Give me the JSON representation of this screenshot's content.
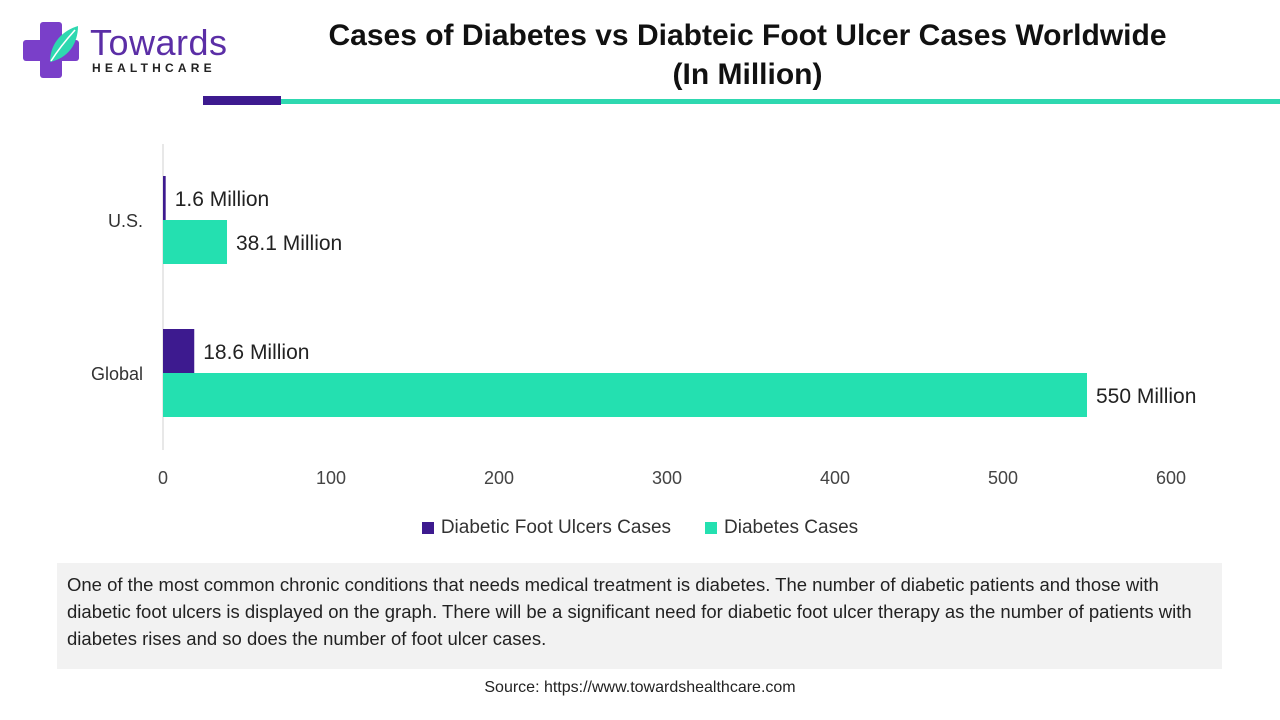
{
  "brand": {
    "name": "Towards",
    "sub": "HEALTHCARE",
    "colors": {
      "purple": "#5b2ea6",
      "teal": "#2ed8b0",
      "dark_purple": "#3d1a8f"
    }
  },
  "description": "One of the most common chronic conditions that needs medical treatment is diabetes. The number of diabetic patients and those with diabetic foot ulcers is displayed on the graph. There will be a significant need for diabetic foot ulcer therapy as the number of patients with diabetes rises and so does the number of foot ulcer cases.",
  "source": "Source: https://www.towardshealthcare.com",
  "chart_data": {
    "type": "bar",
    "orientation": "horizontal",
    "title": "Cases of Diabetes vs Diabteic Foot Ulcer Cases Worldwide (In Million)",
    "title_lines": [
      "Cases of Diabetes vs Diabteic Foot Ulcer Cases Worldwide",
      "(In Million)"
    ],
    "categories": [
      "U.S.",
      "Global"
    ],
    "series": [
      {
        "name": "Diabetic Foot Ulcers Cases",
        "color": "#3d1a8f",
        "values": [
          1.6,
          18.6
        ],
        "labels": [
          "1.6 Million",
          "18.6 Million"
        ]
      },
      {
        "name": "Diabetes Cases",
        "color": "#24e0b0",
        "values": [
          38.1,
          550
        ],
        "labels": [
          "38.1 Million",
          "550 Million"
        ]
      }
    ],
    "xlim": [
      0,
      600
    ],
    "xticks": [
      0,
      100,
      200,
      300,
      400,
      500,
      600
    ],
    "grid": false,
    "legend_position": "bottom"
  }
}
